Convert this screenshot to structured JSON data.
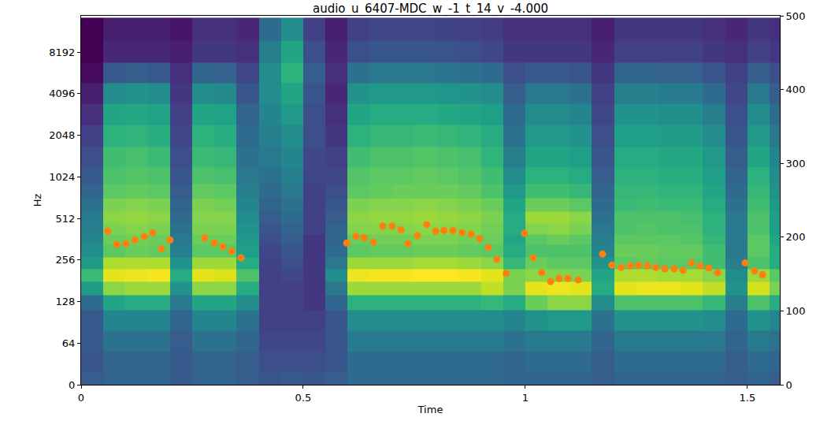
{
  "chart_data": {
    "type": "heatmap",
    "title": "audio_u_6407-MDC_w_-1_t_14_v_-4.000",
    "x_label": "Time",
    "y_label": "Hz",
    "log": "y",
    "grid": false,
    "xlim": [
      0,
      1.573
    ],
    "xticks": [
      0,
      0.5,
      1,
      1.5
    ],
    "ylim": [
      0,
      15000
    ],
    "yticks": [
      0,
      64,
      128,
      256,
      512,
      1024,
      2048,
      4096,
      8192
    ],
    "y2lim": [
      0,
      500
    ],
    "y2ticks": [
      0,
      100,
      200,
      300,
      400,
      500
    ],
    "times": [
      0.025,
      0.075,
      0.125,
      0.175,
      0.225,
      0.275,
      0.325,
      0.375,
      0.425,
      0.475,
      0.525,
      0.575,
      0.625,
      0.675,
      0.725,
      0.775,
      0.825,
      0.875,
      0.925,
      0.975,
      1.025,
      1.075,
      1.125,
      1.175,
      1.225,
      1.275,
      1.325,
      1.375,
      1.425,
      1.475,
      1.525,
      1.575
    ],
    "frequencies": [
      0,
      40,
      64,
      96,
      128,
      160,
      200,
      240,
      300,
      360,
      430,
      512,
      640,
      800,
      1024,
      1400,
      2048,
      2900,
      4096,
      5800,
      8192,
      12000
    ],
    "cells": [
      [
        -54,
        -56,
        -55,
        -55,
        -50,
        -35,
        -25,
        -35,
        -40,
        -42,
        -44,
        -45,
        -48,
        -52,
        -55,
        -58,
        -62,
        -66,
        -70,
        -74,
        -76,
        -76
      ],
      [
        -52,
        -52,
        -48,
        -42,
        -32,
        -14,
        -4,
        -10,
        -20,
        -18,
        -16,
        -14,
        -16,
        -20,
        -22,
        -24,
        -28,
        -32,
        -40,
        -55,
        -68,
        -70
      ],
      [
        -52,
        -52,
        -48,
        -42,
        -30,
        -12,
        -3,
        -10,
        -18,
        -17,
        -15,
        -13,
        -15,
        -19,
        -21,
        -23,
        -27,
        -31,
        -38,
        -54,
        -68,
        -70
      ],
      [
        -52,
        -52,
        -48,
        -42,
        -30,
        -12,
        -2,
        -10,
        -19,
        -18,
        -16,
        -14,
        -16,
        -20,
        -22,
        -25,
        -29,
        -33,
        -40,
        -55,
        -68,
        -70
      ],
      [
        -55,
        -55,
        -54,
        -52,
        -46,
        -38,
        -30,
        -38,
        -44,
        -46,
        -48,
        -50,
        -52,
        -54,
        -56,
        -58,
        -60,
        -62,
        -64,
        -66,
        -70,
        -72
      ],
      [
        -52,
        -52,
        -48,
        -42,
        -32,
        -14,
        -4,
        -12,
        -20,
        -18,
        -16,
        -15,
        -16,
        -19,
        -22,
        -25,
        -28,
        -32,
        -40,
        -52,
        -64,
        -66
      ],
      [
        -52,
        -52,
        -48,
        -42,
        -32,
        -14,
        -5,
        -12,
        -20,
        -18,
        -16,
        -15,
        -17,
        -20,
        -23,
        -26,
        -29,
        -33,
        -41,
        -53,
        -64,
        -66
      ],
      [
        -54,
        -54,
        -52,
        -48,
        -40,
        -30,
        -22,
        -30,
        -34,
        -36,
        -38,
        -40,
        -42,
        -44,
        -46,
        -48,
        -50,
        -52,
        -56,
        -60,
        -66,
        -68
      ],
      [
        -56,
        -58,
        -60,
        -62,
        -62,
        -62,
        -62,
        -61,
        -60,
        -58,
        -56,
        -54,
        -52,
        -50,
        -48,
        -46,
        -44,
        -42,
        -40,
        -40,
        -44,
        -50
      ],
      [
        -55,
        -58,
        -60,
        -62,
        -62,
        -62,
        -60,
        -58,
        -56,
        -54,
        -52,
        -50,
        -48,
        -46,
        -44,
        -42,
        -40,
        -36,
        -32,
        -28,
        -32,
        -40
      ],
      [
        -56,
        -58,
        -60,
        -62,
        -64,
        -64,
        -64,
        -64,
        -64,
        -64,
        -62,
        -62,
        -62,
        -62,
        -60,
        -60,
        -58,
        -58,
        -56,
        -54,
        -58,
        -62
      ],
      [
        -54,
        -56,
        -56,
        -56,
        -52,
        -46,
        -40,
        -46,
        -50,
        -52,
        -52,
        -54,
        -56,
        -58,
        -60,
        -62,
        -64,
        -66,
        -68,
        -66,
        -68,
        -70
      ],
      [
        -50,
        -50,
        -45,
        -40,
        -28,
        -12,
        -3,
        -12,
        -20,
        -18,
        -15,
        -14,
        -16,
        -20,
        -21,
        -24,
        -28,
        -32,
        -38,
        -48,
        -58,
        -62
      ],
      [
        -50,
        -50,
        -45,
        -40,
        -28,
        -12,
        -2,
        -12,
        -19,
        -17,
        -15,
        -13,
        -15,
        -19,
        -20,
        -22,
        -26,
        -30,
        -36,
        -46,
        -56,
        -60
      ],
      [
        -50,
        -50,
        -45,
        -40,
        -28,
        -12,
        -2,
        -12,
        -19,
        -17,
        -15,
        -13,
        -15,
        -18,
        -20,
        -22,
        -26,
        -30,
        -36,
        -46,
        -56,
        -60
      ],
      [
        -50,
        -50,
        -45,
        -40,
        -28,
        -12,
        -1,
        -11,
        -18,
        -16,
        -14,
        -12,
        -14,
        -18,
        -19,
        -21,
        -25,
        -30,
        -36,
        -46,
        -56,
        -60
      ],
      [
        -50,
        -50,
        -45,
        -40,
        -28,
        -12,
        -1,
        -11,
        -18,
        -16,
        -14,
        -13,
        -15,
        -18,
        -20,
        -22,
        -26,
        -31,
        -37,
        -47,
        -57,
        -61
      ],
      [
        -50,
        -50,
        -45,
        -40,
        -28,
        -12,
        -2,
        -12,
        -19,
        -17,
        -15,
        -14,
        -16,
        -19,
        -21,
        -23,
        -27,
        -32,
        -38,
        -48,
        -58,
        -62
      ],
      [
        -50,
        -50,
        -45,
        -40,
        -26,
        -8,
        -4,
        -14,
        -20,
        -18,
        -17,
        -16,
        -18,
        -22,
        -24,
        -27,
        -30,
        -34,
        -40,
        -50,
        -60,
        -63
      ],
      [
        -52,
        -52,
        -48,
        -42,
        -30,
        -16,
        -16,
        -26,
        -30,
        -32,
        -30,
        -30,
        -32,
        -36,
        -40,
        -44,
        -48,
        -50,
        -54,
        -58,
        -64,
        -66
      ],
      [
        -52,
        -50,
        -45,
        -38,
        -18,
        -4,
        -14,
        -18,
        -22,
        -20,
        -15,
        -12,
        -18,
        -24,
        -28,
        -32,
        -36,
        -40,
        -46,
        -55,
        -64,
        -66
      ],
      [
        -52,
        -50,
        -45,
        -36,
        -14,
        -3,
        -15,
        -20,
        -22,
        -18,
        -14,
        -12,
        -18,
        -24,
        -28,
        -32,
        -36,
        -40,
        -46,
        -55,
        -64,
        -66
      ],
      [
        -52,
        -50,
        -45,
        -36,
        -14,
        -4,
        -16,
        -20,
        -22,
        -20,
        -16,
        -14,
        -20,
        -26,
        -30,
        -34,
        -38,
        -42,
        -48,
        -56,
        -64,
        -66
      ],
      [
        -54,
        -54,
        -52,
        -48,
        -40,
        -30,
        -32,
        -38,
        -42,
        -44,
        -46,
        -48,
        -50,
        -52,
        -54,
        -56,
        -58,
        -60,
        -62,
        -64,
        -68,
        -70
      ],
      [
        -52,
        -50,
        -45,
        -38,
        -22,
        -4,
        -10,
        -20,
        -18,
        -20,
        -22,
        -22,
        -25,
        -26,
        -28,
        -30,
        -34,
        -38,
        -44,
        -52,
        -62,
        -64
      ],
      [
        -52,
        -50,
        -45,
        -38,
        -22,
        -3,
        -10,
        -19,
        -18,
        -20,
        -21,
        -22,
        -24,
        -26,
        -28,
        -30,
        -34,
        -38,
        -44,
        -52,
        -62,
        -64
      ],
      [
        -52,
        -50,
        -45,
        -38,
        -22,
        -3,
        -11,
        -20,
        -19,
        -20,
        -22,
        -22,
        -25,
        -27,
        -29,
        -31,
        -35,
        -39,
        -45,
        -53,
        -62,
        -64
      ],
      [
        -52,
        -50,
        -45,
        -38,
        -22,
        -4,
        -11,
        -20,
        -19,
        -21,
        -22,
        -23,
        -25,
        -27,
        -29,
        -31,
        -35,
        -39,
        -45,
        -53,
        -62,
        -64
      ],
      [
        -52,
        -50,
        -46,
        -40,
        -26,
        -8,
        -14,
        -24,
        -24,
        -26,
        -28,
        -28,
        -30,
        -32,
        -34,
        -36,
        -40,
        -44,
        -50,
        -56,
        -64,
        -66
      ],
      [
        -54,
        -54,
        -52,
        -50,
        -44,
        -38,
        -40,
        -44,
        -46,
        -46,
        -46,
        -46,
        -48,
        -50,
        -52,
        -54,
        -56,
        -58,
        -60,
        -62,
        -66,
        -68
      ],
      [
        -52,
        -50,
        -45,
        -38,
        -22,
        -6,
        -12,
        -22,
        -20,
        -20,
        -22,
        -22,
        -24,
        -26,
        -28,
        -32,
        -36,
        -40,
        -46,
        -54,
        -62,
        -64
      ],
      [
        -54,
        -52,
        -48,
        -42,
        -30,
        -16,
        -20,
        -30,
        -30,
        -32,
        -34,
        -34,
        -36,
        -38,
        -40,
        -42,
        -46,
        -50,
        -54,
        -58,
        -64,
        -66
      ]
    ],
    "series": [
      {
        "type": "scatter",
        "axis": "y2",
        "color": "#ff7f0e",
        "marker": "circle",
        "x": [
          0.06,
          0.08,
          0.101,
          0.121,
          0.142,
          0.161,
          0.181,
          0.2,
          0.278,
          0.3,
          0.319,
          0.339,
          0.36,
          0.598,
          0.619,
          0.637,
          0.658,
          0.679,
          0.7,
          0.72,
          0.736,
          0.757,
          0.778,
          0.798,
          0.817,
          0.837,
          0.858,
          0.878,
          0.897,
          0.917,
          0.936,
          0.957,
          0.998,
          1.018,
          1.037,
          1.057,
          1.076,
          1.096,
          1.119,
          1.174,
          1.195,
          1.216,
          1.236,
          1.255,
          1.275,
          1.294,
          1.314,
          1.335,
          1.355,
          1.374,
          1.394,
          1.413,
          1.433,
          1.495,
          1.516,
          1.534
        ],
        "values": [
          208,
          190,
          191,
          196,
          201,
          206,
          184,
          196,
          199,
          192,
          187,
          181,
          172,
          192,
          201,
          199,
          193,
          215,
          215,
          210,
          191,
          202,
          217,
          208,
          209,
          209,
          206,
          204,
          198,
          186,
          170,
          151,
          205,
          172,
          152,
          140,
          144,
          144,
          142,
          177,
          162,
          159,
          161,
          162,
          161,
          159,
          157,
          157,
          155,
          165,
          161,
          158,
          152,
          165,
          154,
          149
        ]
      }
    ]
  }
}
